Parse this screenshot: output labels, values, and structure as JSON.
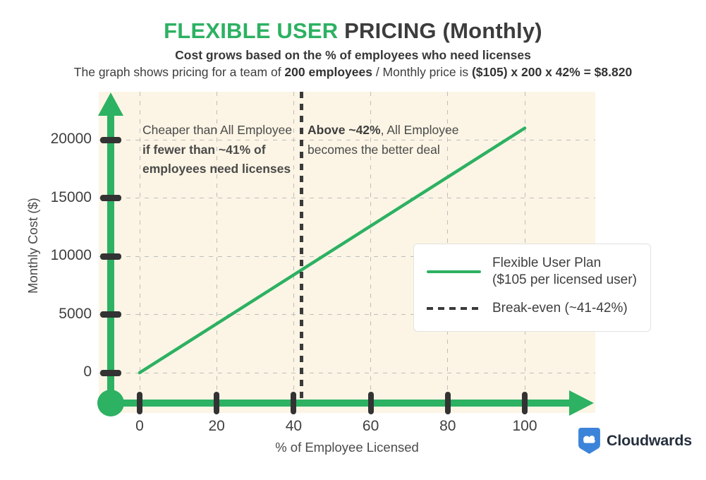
{
  "colors": {
    "green": "#2DB162",
    "cream": "#FCF5E5",
    "grid": "#BDBDBD",
    "tick": "#333333",
    "dark": "#3B3B3B",
    "blue": "#3C84D9",
    "logo_text": "#26303E"
  },
  "header": {
    "title_highlight": "FLEXIBLE USER ",
    "title_rest": "PRICING (Monthly)",
    "subtitle1": "Cost grows based on the % of employees who need licenses",
    "subtitle2": {
      "r1": "The graph shows pricing for a team of ",
      "b1": "200 employees",
      "r2": " / Monthly price is ",
      "b2": "($105) x 200 x 42% = $8.820"
    }
  },
  "annotations": {
    "left": {
      "line1": "Cheaper than All Employee",
      "line2": "if fewer than ~41% of",
      "line3": "employees need licenses"
    },
    "right": {
      "line1_bold": "Above ~42%",
      "line1_rest": ", All Employee",
      "line2": "becomes the better deal"
    }
  },
  "legend": {
    "items": [
      {
        "line1": "Flexible User Plan",
        "line2": "($105 per licensed user)"
      },
      {
        "line1": "Break-even (~41-42%)"
      }
    ]
  },
  "logo": {
    "text": "Cloudwards"
  },
  "chart_data": {
    "type": "line",
    "title": "FLEXIBLE USER PRICING (Monthly)",
    "xlabel": "% of Employee Licensed",
    "ylabel": "Monthly Cost ($)",
    "xlim": [
      0,
      100
    ],
    "ylim": [
      0,
      22000
    ],
    "xticks": [
      0,
      20,
      40,
      60,
      80,
      100
    ],
    "yticks": [
      0,
      5000,
      10000,
      15000,
      20000
    ],
    "grid": true,
    "legend_position": "center-right",
    "series": [
      {
        "name": "Flexible User Plan ($105 per licensed user)",
        "type": "line",
        "style": "solid",
        "color": "#2DB162",
        "x": [
          0,
          100
        ],
        "y": [
          0,
          21000
        ],
        "per_user_price": 105,
        "team_size": 200
      },
      {
        "name": "Break-even (~41-42%)",
        "type": "vline",
        "style": "dashed",
        "color": "#3B3B3B",
        "x": 42
      }
    ],
    "highlighted_point": {
      "x_pct": 42,
      "monthly_price": 8820
    }
  }
}
